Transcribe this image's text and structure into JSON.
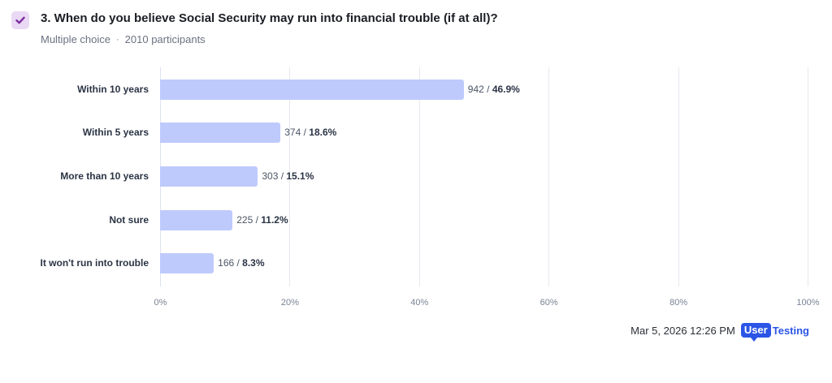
{
  "question": {
    "icon": "check-icon",
    "title": "3. When do you believe Social Security may run into financial trouble (if at all)?",
    "type": "Multiple choice",
    "separator": "·",
    "participants": "2010 participants"
  },
  "chart_data": {
    "type": "bar",
    "orientation": "horizontal",
    "title": "3. When do you believe Social Security may run into financial trouble (if at all)?",
    "xlabel": "",
    "ylabel": "",
    "xlim": [
      0,
      100
    ],
    "grid": true,
    "x_ticks": [
      "0%",
      "20%",
      "40%",
      "60%",
      "80%",
      "100%"
    ],
    "categories": [
      "Within 10 years",
      "Within 5 years",
      "More than 10 years",
      "Not sure",
      "It won't run into trouble"
    ],
    "counts": [
      942,
      374,
      303,
      225,
      166
    ],
    "values": [
      46.9,
      18.6,
      15.1,
      11.2,
      8.3
    ],
    "labels": [
      {
        "count": "942",
        "sep": " / ",
        "pct": "46.9%"
      },
      {
        "count": "374",
        "sep": " / ",
        "pct": "18.6%"
      },
      {
        "count": "303",
        "sep": " / ",
        "pct": "15.1%"
      },
      {
        "count": "225",
        "sep": " / ",
        "pct": "11.2%"
      },
      {
        "count": "166",
        "sep": " / ",
        "pct": "8.3%"
      }
    ],
    "bar_color": "#bfcafc"
  },
  "footer": {
    "timestamp": "Mar 5, 2026  12:26 PM",
    "logo_part1": "User",
    "logo_part2": "Testing",
    "brand_color": "#2b55e6"
  }
}
